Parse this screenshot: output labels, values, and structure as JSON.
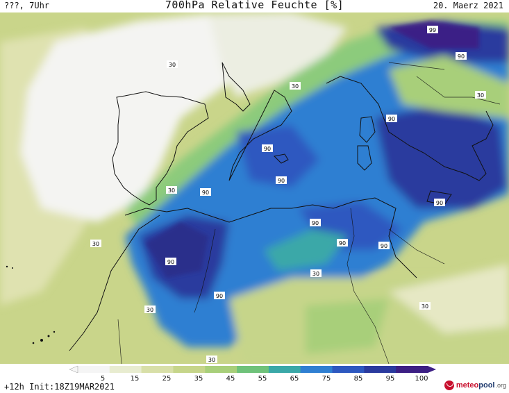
{
  "header": {
    "left": "???, 7Uhr",
    "title": "700hPa Relative Feuchte [%]",
    "date": "20. Maerz 2021"
  },
  "map": {
    "contour_labels": [
      "99",
      "90",
      "30",
      "30",
      "30",
      "90",
      "90",
      "90",
      "90",
      "90",
      "90",
      "30",
      "30",
      "90",
      "90",
      "90",
      "30",
      "30",
      "30",
      "30",
      "30",
      "90",
      "30"
    ]
  },
  "colorbar": {
    "ticks": [
      "5",
      "15",
      "25",
      "35",
      "45",
      "55",
      "65",
      "75",
      "85",
      "95",
      "100"
    ],
    "colors": [
      "#f5f5f5",
      "#e8ecd0",
      "#d8dfa8",
      "#c6d58a",
      "#a8cf7a",
      "#6fc27a",
      "#3aa8a8",
      "#2f7fd2",
      "#2d58c0",
      "#2a3a9e",
      "#3c1f84"
    ]
  },
  "footer": {
    "run_info": "+12h Init:18Z19MAR2021",
    "brand_a": "meteo",
    "brand_b": "pool",
    "brand_c": ".org"
  }
}
